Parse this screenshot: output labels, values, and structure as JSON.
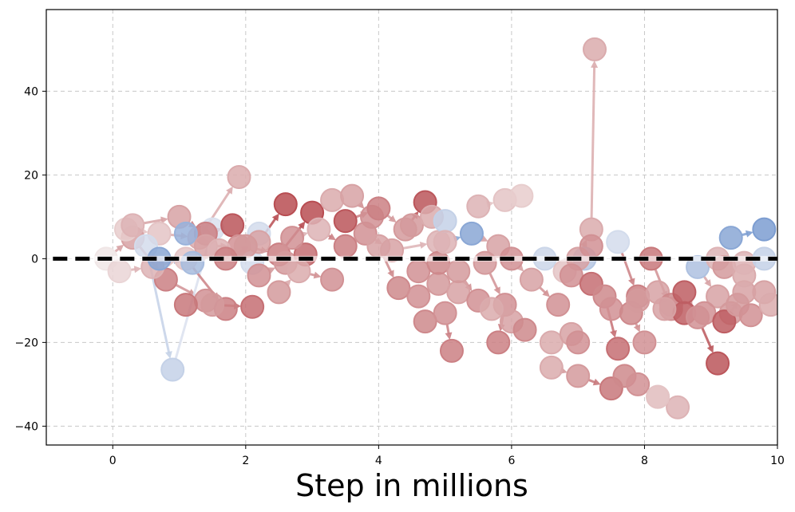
{
  "chart_data": {
    "type": "scatter",
    "title": "",
    "xlabel": "Step in millions",
    "ylabel": "",
    "xlim": [
      -1,
      10
    ],
    "ylim": [
      -44.5,
      59.5
    ],
    "xticks": [
      0,
      2,
      4,
      6,
      8,
      10
    ],
    "yticks": [
      -40,
      -20,
      0,
      20,
      40
    ],
    "xtick_labels": [
      "0",
      "2",
      "4",
      "6",
      "8",
      "10"
    ],
    "ytick_labels": [
      "−40",
      "−20",
      "0",
      "20",
      "40"
    ],
    "grid": true,
    "reference_line": {
      "y": 0,
      "style": "dashed",
      "color": "#000000"
    },
    "colors": {
      "strong_red": "#b2182b",
      "light_red": "#f4a582",
      "neutral": "#d7dce6",
      "blue": "#4a79bd",
      "arrow": "#c27b7b"
    },
    "trajectories": [
      {
        "points": [
          [
            -0.1,
            0
          ],
          [
            0.3,
            5
          ],
          [
            0.8,
            -5
          ],
          [
            1.4,
            -10
          ]
        ],
        "values": [
          0.0,
          0.4,
          0.6,
          0.5
        ]
      },
      {
        "points": [
          [
            0.2,
            7
          ],
          [
            0.7,
            6
          ],
          [
            1.3,
            5
          ],
          [
            1.9,
            19.5
          ]
        ],
        "values": [
          0.15,
          0.2,
          0.35,
          0.35
        ]
      },
      {
        "points": [
          [
            0.5,
            3
          ],
          [
            0.9,
            -26.5
          ],
          [
            1.5,
            7
          ]
        ],
        "values": [
          -0.1,
          -0.2,
          -0.05
        ]
      },
      {
        "points": [
          [
            0.1,
            -3
          ],
          [
            0.6,
            -2
          ],
          [
            1.1,
            0
          ],
          [
            1.7,
            -12
          ]
        ],
        "values": [
          0.1,
          0.3,
          0.2,
          0.6
        ]
      },
      {
        "points": [
          [
            0.3,
            8
          ],
          [
            1.0,
            10
          ],
          [
            1.4,
            6
          ],
          [
            1.8,
            8
          ]
        ],
        "values": [
          0.3,
          0.4,
          0.6,
          0.85
        ]
      },
      {
        "points": [
          [
            1.1,
            6
          ],
          [
            1.4,
            3
          ],
          [
            1.9,
            3
          ],
          [
            2.2,
            6
          ]
        ],
        "values": [
          -0.5,
          0.4,
          0.5,
          -0.1
        ]
      },
      {
        "points": [
          [
            0.7,
            0
          ],
          [
            1.2,
            -1
          ],
          [
            1.6,
            2
          ],
          [
            2.1,
            -1
          ]
        ],
        "values": [
          -0.6,
          -0.4,
          0.3,
          -0.1
        ]
      },
      {
        "points": [
          [
            1.1,
            -11
          ],
          [
            1.5,
            -11
          ],
          [
            2.1,
            -11.5
          ]
        ],
        "values": [
          0.65,
          0.45,
          0.7
        ]
      },
      {
        "points": [
          [
            1.7,
            0
          ],
          [
            2.2,
            4
          ],
          [
            2.6,
            13
          ]
        ],
        "values": [
          0.6,
          0.4,
          0.9
        ]
      },
      {
        "points": [
          [
            2.0,
            3
          ],
          [
            2.5,
            1
          ],
          [
            3.0,
            11
          ]
        ],
        "values": [
          0.45,
          0.6,
          0.9
        ]
      },
      {
        "points": [
          [
            2.2,
            -4
          ],
          [
            2.6,
            -1
          ],
          [
            2.9,
            1
          ]
        ],
        "values": [
          0.5,
          0.45,
          0.7
        ]
      },
      {
        "points": [
          [
            2.5,
            -8
          ],
          [
            2.8,
            -3
          ],
          [
            3.3,
            -5
          ]
        ],
        "values": [
          0.45,
          0.35,
          0.5
        ]
      },
      {
        "points": [
          [
            2.7,
            5
          ],
          [
            3.1,
            7
          ],
          [
            3.5,
            3
          ]
        ],
        "values": [
          0.5,
          0.3,
          0.6
        ]
      },
      {
        "points": [
          [
            3.3,
            14
          ],
          [
            3.6,
            15
          ],
          [
            3.9,
            10
          ]
        ],
        "values": [
          0.35,
          0.4,
          0.5
        ]
      },
      {
        "points": [
          [
            3.5,
            9
          ],
          [
            4.0,
            12
          ],
          [
            4.4,
            7
          ],
          [
            4.7,
            13.5
          ]
        ],
        "values": [
          0.85,
          0.6,
          0.45,
          0.85
        ]
      },
      {
        "points": [
          [
            3.8,
            6
          ],
          [
            4.2,
            2
          ],
          [
            4.9,
            4
          ]
        ],
        "values": [
          0.5,
          0.4,
          0.3
        ]
      },
      {
        "points": [
          [
            4.0,
            3
          ],
          [
            4.3,
            -7
          ],
          [
            4.6,
            -9
          ]
        ],
        "values": [
          0.4,
          0.55,
          0.5
        ]
      },
      {
        "points": [
          [
            4.5,
            8
          ],
          [
            4.8,
            10
          ],
          [
            5.0,
            9
          ]
        ],
        "values": [
          0.45,
          0.35,
          -0.2
        ]
      },
      {
        "points": [
          [
            4.6,
            -3
          ],
          [
            4.9,
            -6
          ],
          [
            5.2,
            -8
          ]
        ],
        "values": [
          0.5,
          0.45,
          0.4
        ]
      },
      {
        "points": [
          [
            4.7,
            -15
          ],
          [
            5.0,
            -13
          ],
          [
            5.1,
            -22
          ]
        ],
        "values": [
          0.55,
          0.5,
          0.6
        ]
      },
      {
        "points": [
          [
            4.9,
            -1
          ],
          [
            5.2,
            -3
          ],
          [
            5.5,
            -10
          ]
        ],
        "values": [
          0.55,
          0.45,
          0.5
        ]
      },
      {
        "points": [
          [
            5.0,
            4
          ],
          [
            5.4,
            6
          ],
          [
            5.8,
            3
          ]
        ],
        "values": [
          0.3,
          -0.6,
          0.4
        ]
      },
      {
        "points": [
          [
            5.5,
            12.5
          ],
          [
            5.9,
            14
          ],
          [
            6.15,
            15
          ]
        ],
        "values": [
          0.3,
          0.2,
          0.15
        ]
      },
      {
        "points": [
          [
            5.6,
            -1
          ],
          [
            5.9,
            -11
          ],
          [
            5.8,
            -20
          ]
        ],
        "values": [
          0.45,
          0.5,
          0.6
        ]
      },
      {
        "points": [
          [
            5.7,
            -12
          ],
          [
            6.0,
            -15
          ],
          [
            6.2,
            -17
          ]
        ],
        "values": [
          0.35,
          0.4,
          0.55
        ]
      },
      {
        "points": [
          [
            6.0,
            0
          ],
          [
            6.3,
            -5
          ],
          [
            6.7,
            -11
          ]
        ],
        "values": [
          0.5,
          0.4,
          0.5
        ]
      },
      {
        "points": [
          [
            6.5,
            0
          ],
          [
            6.8,
            -3
          ],
          [
            7.1,
            0
          ]
        ],
        "values": [
          -0.15,
          0.2,
          -0.3
        ]
      },
      {
        "points": [
          [
            6.6,
            -20
          ],
          [
            6.9,
            -18
          ],
          [
            7.0,
            -20
          ]
        ],
        "values": [
          0.35,
          0.4,
          0.5
        ]
      },
      {
        "points": [
          [
            6.6,
            -26
          ],
          [
            7.0,
            -28
          ],
          [
            7.5,
            -31
          ]
        ],
        "values": [
          0.35,
          0.45,
          0.65
        ]
      },
      {
        "points": [
          [
            7.0,
            0
          ],
          [
            7.2,
            7
          ],
          [
            7.25,
            50
          ]
        ],
        "values": [
          0.4,
          0.35,
          0.35
        ]
      },
      {
        "points": [
          [
            6.9,
            -4
          ],
          [
            7.2,
            -6
          ],
          [
            7.4,
            -9
          ],
          [
            7.6,
            -21.5
          ]
        ],
        "values": [
          0.5,
          0.7,
          0.55,
          0.7
        ]
      },
      {
        "points": [
          [
            7.2,
            3
          ],
          [
            7.6,
            4
          ],
          [
            7.9,
            -9
          ]
        ],
        "values": [
          0.5,
          -0.1,
          0.6
        ]
      },
      {
        "points": [
          [
            7.5,
            -12
          ],
          [
            7.8,
            -13
          ],
          [
            8.0,
            -20
          ]
        ],
        "values": [
          0.5,
          0.55,
          0.5
        ]
      },
      {
        "points": [
          [
            7.7,
            -28
          ],
          [
            7.9,
            -30
          ],
          [
            8.2,
            -33
          ]
        ],
        "values": [
          0.55,
          0.5,
          0.2
        ]
      },
      {
        "points": [
          [
            7.9,
            -10
          ],
          [
            8.2,
            -8
          ],
          [
            8.4,
            -11
          ]
        ],
        "values": [
          0.45,
          0.4,
          0.55
        ]
      },
      {
        "points": [
          [
            8.1,
            0
          ],
          [
            8.4,
            -12
          ],
          [
            8.6,
            -13
          ]
        ],
        "values": [
          0.65,
          0.5,
          0.8
        ]
      },
      {
        "points": [
          [
            8.3,
            -12
          ],
          [
            8.6,
            -8
          ],
          [
            8.8,
            -14
          ],
          [
            9.1,
            -25
          ]
        ],
        "values": [
          0.4,
          0.8,
          0.5,
          0.85
        ]
      },
      {
        "points": [
          [
            8.5,
            -35.5
          ],
          [
            8.2,
            -33
          ]
        ],
        "values": [
          0.3,
          0.2
        ]
      },
      {
        "points": [
          [
            8.8,
            -2
          ],
          [
            9.1,
            -9
          ],
          [
            9.3,
            -13
          ]
        ],
        "values": [
          -0.35,
          0.4,
          0.45
        ]
      },
      {
        "points": [
          [
            8.9,
            -13
          ],
          [
            9.2,
            -15
          ],
          [
            9.5,
            -8
          ]
        ],
        "values": [
          0.5,
          0.8,
          0.4
        ]
      },
      {
        "points": [
          [
            9.1,
            0
          ],
          [
            9.3,
            5
          ],
          [
            9.8,
            7
          ]
        ],
        "values": [
          0.3,
          -0.6,
          -0.7
        ]
      },
      {
        "points": [
          [
            9.2,
            -2
          ],
          [
            9.5,
            -4
          ],
          [
            9.8,
            -8
          ]
        ],
        "values": [
          0.45,
          0.35,
          0.4
        ]
      },
      {
        "points": [
          [
            9.4,
            -11
          ],
          [
            9.6,
            -13.5
          ],
          [
            9.9,
            -11
          ]
        ],
        "values": [
          0.45,
          0.5,
          0.35
        ]
      },
      {
        "points": [
          [
            9.5,
            -1
          ],
          [
            9.8,
            0
          ]
        ],
        "values": [
          0.3,
          -0.2
        ]
      }
    ]
  }
}
